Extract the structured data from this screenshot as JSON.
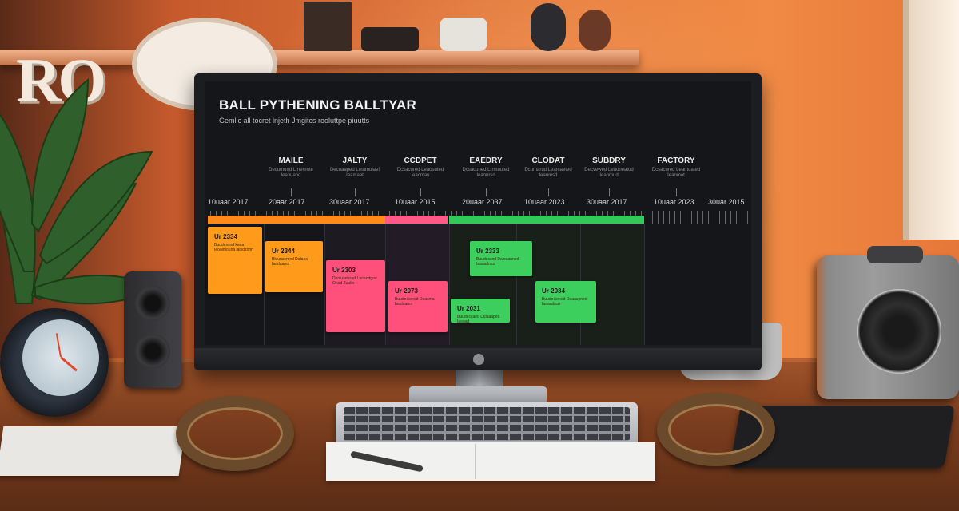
{
  "screen": {
    "title": "BALL PYTHENING BALLTYAR",
    "subtitle": "Gemlic all tocret lnjeth Jmgitcs rooluttpe piuutts",
    "phases": [
      {
        "name": "MAILE",
        "desc": "Decumund Lmemnte Ieanuand"
      },
      {
        "name": "JALTY",
        "desc": "Decuaaped Lmamulaef Ieamaat"
      },
      {
        "name": "CCDPET",
        "desc": "Dcsacured Leaosuted Ieacmau"
      },
      {
        "name": "EAEDRY",
        "desc": "Dcsacuned Lrrmuuted Ieaonrsd"
      },
      {
        "name": "CLODAT",
        "desc": "Dcumarud Leamaeted Ieanmsd"
      },
      {
        "name": "SUBDRY",
        "desc": "Decvewed Leaoneatod Ieanmud"
      },
      {
        "name": "FACTORY",
        "desc": "Dcsacured Leamuated Ieanmot"
      }
    ],
    "dates": [
      "10uaar 2017",
      "20aar 2017",
      "30uaar 2017",
      "10uaar 2015",
      "20uaar 2037",
      "10uaar 2023",
      "30uaar 2017",
      "10uaar 2023",
      "30uar 2015"
    ],
    "cards": [
      {
        "title": "Ur 2334",
        "text": "Buudessnd kaua Ieoolmouna ladidzonn",
        "color": "#ff9a1a"
      },
      {
        "title": "Ur 2344",
        "text": "Bluunsemed Dalaoa Iaaduamn",
        "color": "#ff9a1a"
      },
      {
        "title": "Ur 2303",
        "text": "Dooluseused Laoaodgou Onad Zuulin",
        "color": "#ff4f7a"
      },
      {
        "title": "Ur 2073",
        "text": "Buudeccreed Daasma Iaaduamn",
        "color": "#ff4f7a"
      },
      {
        "title": "Ur 2333",
        "text": "Buudessnd Dalouauned Iaaaadnso",
        "color": "#3ccf5e"
      },
      {
        "title": "Ur 2031",
        "text": "Buudeccaed Dulaaaped Iaoaad",
        "color": "#3ccf5e"
      },
      {
        "title": "Ur 2034",
        "text": "Buudeccreed Daaaupned Iaaaadnas",
        "color": "#3ccf5e"
      }
    ],
    "band_colors": [
      "#ff8a1a",
      "#ff5a86",
      "#33c85a"
    ]
  },
  "shelf": {
    "letters": "RO"
  }
}
